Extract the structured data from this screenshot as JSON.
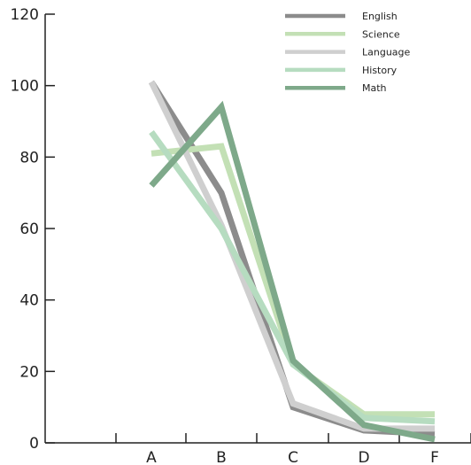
{
  "chart_data": {
    "type": "line",
    "title": "",
    "xlabel": "",
    "ylabel": "",
    "categories": [
      "A",
      "B",
      "C",
      "D",
      "F"
    ],
    "ylim": [
      0,
      120
    ],
    "yticks": [
      "0",
      "20",
      "40",
      "60",
      "80",
      "100",
      "120"
    ],
    "grid": false,
    "legend_position": "top-right",
    "series": [
      {
        "name": "English",
        "color": "#8c8c8c",
        "values": [
          101,
          70,
          10,
          3.5,
          2.5
        ]
      },
      {
        "name": "Science",
        "color": "#c3e0b5",
        "values": [
          81,
          83,
          22,
          8,
          8
        ]
      },
      {
        "name": "Language",
        "color": "#cfcfcf",
        "values": [
          101,
          61,
          11,
          4,
          4
        ]
      },
      {
        "name": "History",
        "color": "#b6dcc0",
        "values": [
          87,
          60,
          22,
          7,
          6
        ]
      },
      {
        "name": "Math",
        "color": "#7ea98a",
        "values": [
          72,
          94,
          23,
          5,
          1
        ]
      }
    ]
  }
}
